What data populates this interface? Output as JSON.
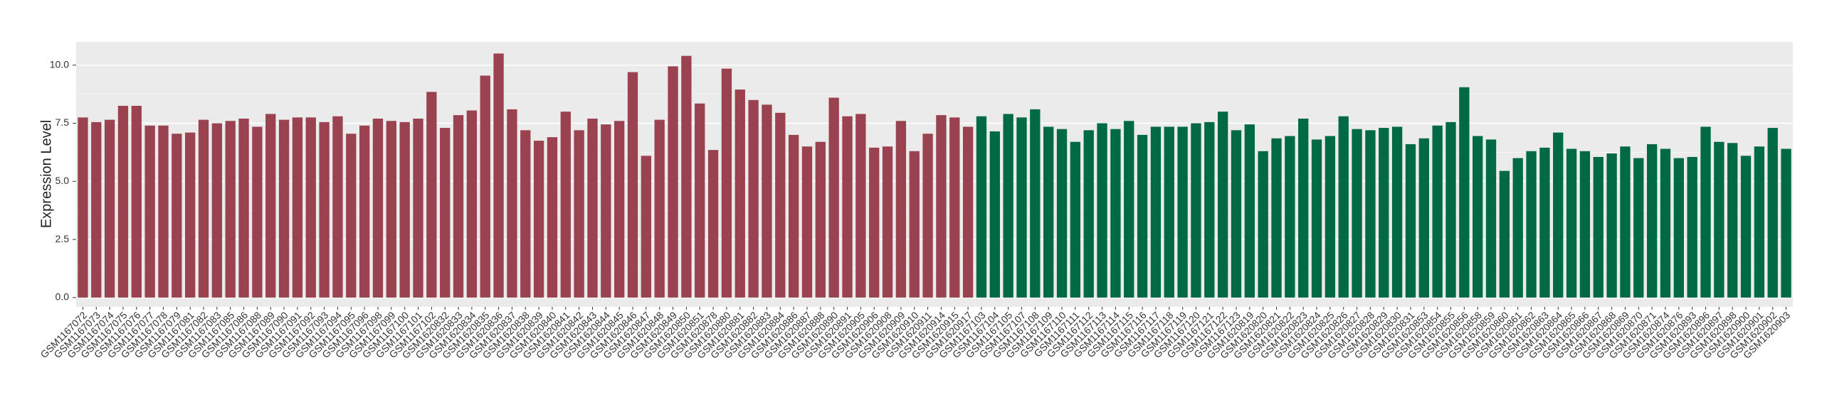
{
  "chart_data": {
    "type": "bar",
    "y_label": "Expression Level",
    "ylim": [
      -0.4,
      11.0
    ],
    "yticks": [
      {
        "value": 0,
        "label": "0.0"
      },
      2.5,
      {
        "value": 5,
        "label": "5.0"
      },
      7.5,
      {
        "value": 10,
        "label": "10.0"
      }
    ],
    "grid": true,
    "series": [
      {
        "color": "#9b4250",
        "categories": [
          "GSM1167072",
          "GSM1167073",
          "GSM1167074",
          "GSM1167075",
          "GSM1167076",
          "GSM1167077",
          "GSM1167078",
          "GSM1167079",
          "GSM1167081",
          "GSM1167082",
          "GSM1167083",
          "GSM1167085",
          "GSM1167086",
          "GSM1167088",
          "GSM1167089",
          "GSM1167090",
          "GSM1167091",
          "GSM1167092",
          "GSM1167093",
          "GSM1167094",
          "GSM1167095",
          "GSM1167096",
          "GSM1167098",
          "GSM1167099",
          "GSM1167100",
          "GSM1167101",
          "GSM1167102",
          "GSM1620832",
          "GSM1620833",
          "GSM1620834",
          "GSM1620835",
          "GSM1620836",
          "GSM1620837",
          "GSM1620838",
          "GSM1620839",
          "GSM1620840",
          "GSM1620841",
          "GSM1620842",
          "GSM1620843",
          "GSM1620844",
          "GSM1620845",
          "GSM1620846",
          "GSM1620847",
          "GSM1620848",
          "GSM1620849",
          "GSM1620850",
          "GSM1620851",
          "GSM1620878",
          "GSM1620880",
          "GSM1620881",
          "GSM1620882",
          "GSM1620883",
          "GSM1620884",
          "GSM1620886",
          "GSM1620887",
          "GSM1620888",
          "GSM1620890",
          "GSM1620891",
          "GSM1620905",
          "GSM1620906",
          "GSM1620908",
          "GSM1620909",
          "GSM1620910",
          "GSM1620911",
          "GSM1620914",
          "GSM1620915",
          "GSM1620917"
        ],
        "values": [
          7.75,
          7.55,
          7.65,
          8.25,
          8.25,
          7.4,
          7.4,
          7.05,
          7.1,
          7.65,
          7.5,
          7.6,
          7.7,
          7.35,
          7.9,
          7.65,
          7.75,
          7.75,
          7.55,
          7.8,
          7.05,
          7.4,
          7.7,
          7.6,
          7.55,
          7.7,
          8.85,
          7.3,
          7.85,
          8.05,
          9.55,
          10.5,
          8.1,
          7.2,
          6.75,
          6.9,
          8.0,
          7.2,
          7.7,
          7.45,
          7.6,
          9.7,
          6.1,
          7.65,
          9.95,
          10.4,
          8.35,
          6.35,
          9.85,
          8.95,
          8.5,
          8.3,
          7.95,
          7.0,
          6.5,
          6.7,
          8.6,
          7.8,
          7.9,
          6.45,
          6.5,
          7.6,
          6.3,
          7.05,
          7.85,
          7.75,
          7.35
        ]
      },
      {
        "color": "#006a44",
        "categories": [
          "GSM1167103",
          "GSM1167104",
          "GSM1167105",
          "GSM1167107",
          "GSM1167108",
          "GSM1167109",
          "GSM1167110",
          "GSM1167111",
          "GSM1167112",
          "GSM1167113",
          "GSM1167114",
          "GSM1167115",
          "GSM1167116",
          "GSM1167117",
          "GSM1167118",
          "GSM1167119",
          "GSM1167120",
          "GSM1167121",
          "GSM1167122",
          "GSM1167123",
          "GSM1620819",
          "GSM1620820",
          "GSM1620821",
          "GSM1620822",
          "GSM1620823",
          "GSM1620824",
          "GSM1620825",
          "GSM1620826",
          "GSM1620827",
          "GSM1620828",
          "GSM1620829",
          "GSM1620830",
          "GSM1620831",
          "GSM1620853",
          "GSM1620854",
          "GSM1620855",
          "GSM1620856",
          "GSM1620858",
          "GSM1620859",
          "GSM1620860",
          "GSM1620861",
          "GSM1620862",
          "GSM1620863",
          "GSM1620864",
          "GSM1620865",
          "GSM1620866",
          "GSM1620867",
          "GSM1620868",
          "GSM1620869",
          "GSM1620870",
          "GSM1620871",
          "GSM1620874",
          "GSM1620876",
          "GSM1620893",
          "GSM1620896",
          "GSM1620897",
          "GSM1620898",
          "GSM1620900",
          "GSM1620901",
          "GSM1620902",
          "GSM1620903"
        ],
        "values": [
          7.8,
          7.15,
          7.9,
          7.75,
          8.1,
          7.35,
          7.25,
          6.7,
          7.2,
          7.5,
          7.25,
          7.6,
          7.0,
          7.35,
          7.35,
          7.35,
          7.5,
          7.55,
          8.0,
          7.2,
          7.45,
          6.3,
          6.85,
          6.95,
          7.7,
          6.8,
          6.95,
          7.8,
          7.25,
          7.2,
          7.3,
          7.35,
          6.6,
          6.85,
          7.4,
          7.55,
          9.05,
          6.95,
          6.8,
          5.45,
          6.0,
          6.3,
          6.45,
          7.1,
          6.4,
          6.3,
          6.05,
          6.2,
          6.5,
          6.0,
          6.6,
          6.4,
          6.0,
          6.05,
          7.35,
          6.7,
          6.65,
          6.1,
          6.5,
          7.3,
          6.4
        ]
      }
    ]
  }
}
